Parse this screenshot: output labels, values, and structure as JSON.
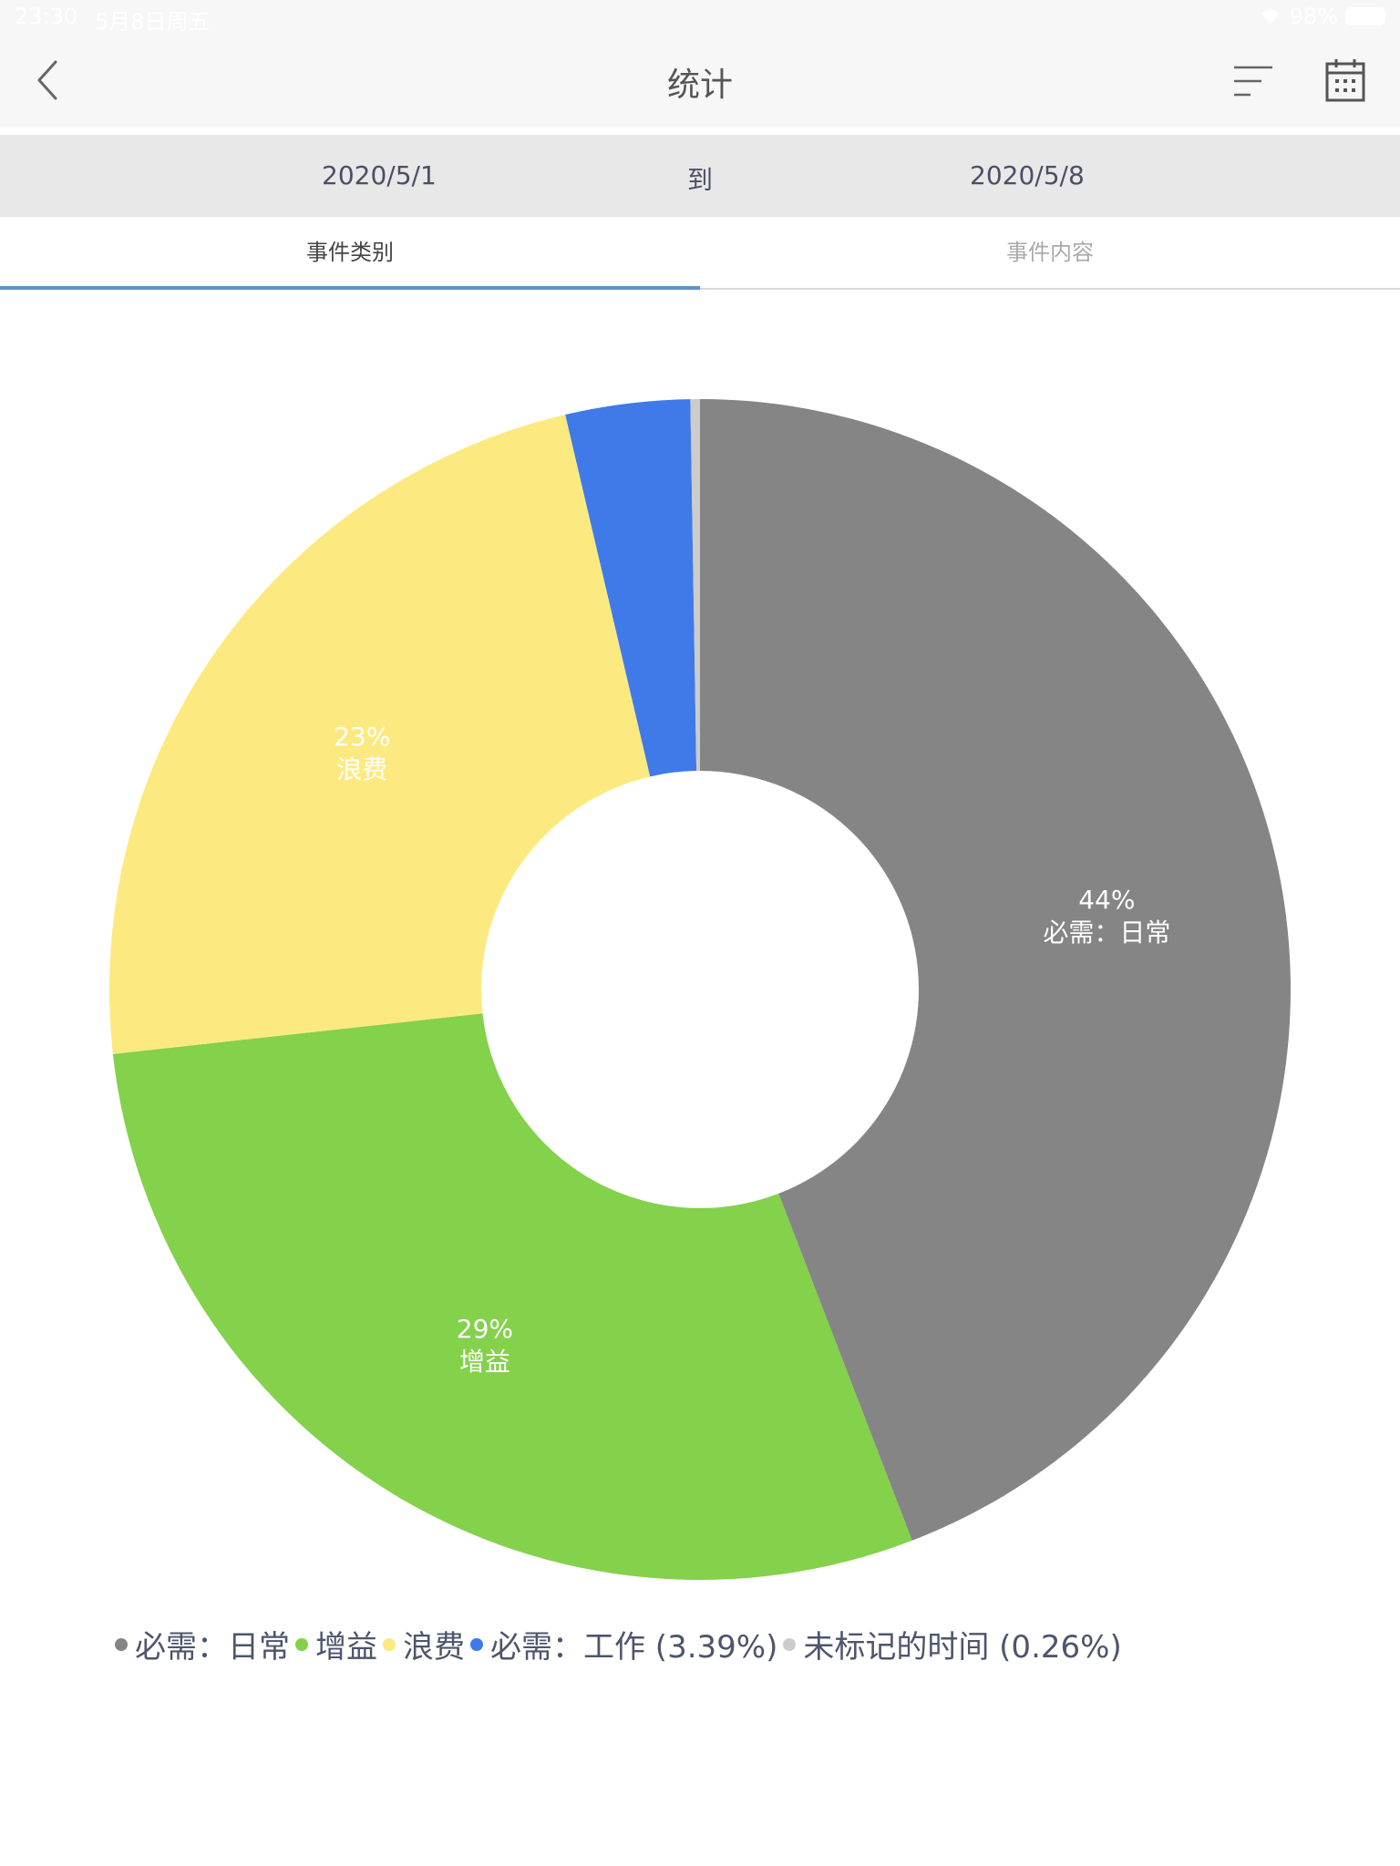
{
  "status_bar": {
    "time": "23:30",
    "date": "5月8日周五",
    "battery_percent": "98%"
  },
  "header": {
    "title": "统计",
    "icons": {
      "back": "chevron-left-icon",
      "list": "list-icon",
      "calendar": "calendar-icon"
    }
  },
  "date_range": {
    "start": "2020/5/1",
    "separator": "到",
    "end": "2020/5/8"
  },
  "tabs": [
    {
      "label": "事件类别",
      "active": true
    },
    {
      "label": "事件内容",
      "active": false
    }
  ],
  "chart_data": {
    "type": "pie",
    "donut": true,
    "series": [
      {
        "name": "必需：日常",
        "value": 44,
        "label_pct": "44%",
        "color": "#858585"
      },
      {
        "name": "增益",
        "value": 29,
        "label_pct": "29%",
        "color": "#84d14b"
      },
      {
        "name": "浪费",
        "value": 23,
        "label_pct": "23%",
        "color": "#fcea80"
      },
      {
        "name": "必需：工作",
        "value": 3.39,
        "color": "#3f7ae8"
      },
      {
        "name": "未标记的时间",
        "value": 0.26,
        "color": "#cccccc"
      }
    ],
    "legend_placement": "bottom",
    "legend": [
      {
        "text": "必需：日常",
        "color": "#858585"
      },
      {
        "text": "增益",
        "color": "#84d14b"
      },
      {
        "text": "浪费",
        "color": "#fcea80"
      },
      {
        "text": "必需：工作 (3.39%)",
        "color": "#3f7ae8"
      },
      {
        "text": "未标记的时间 (0.26%)",
        "color": "#cccccc"
      }
    ]
  }
}
